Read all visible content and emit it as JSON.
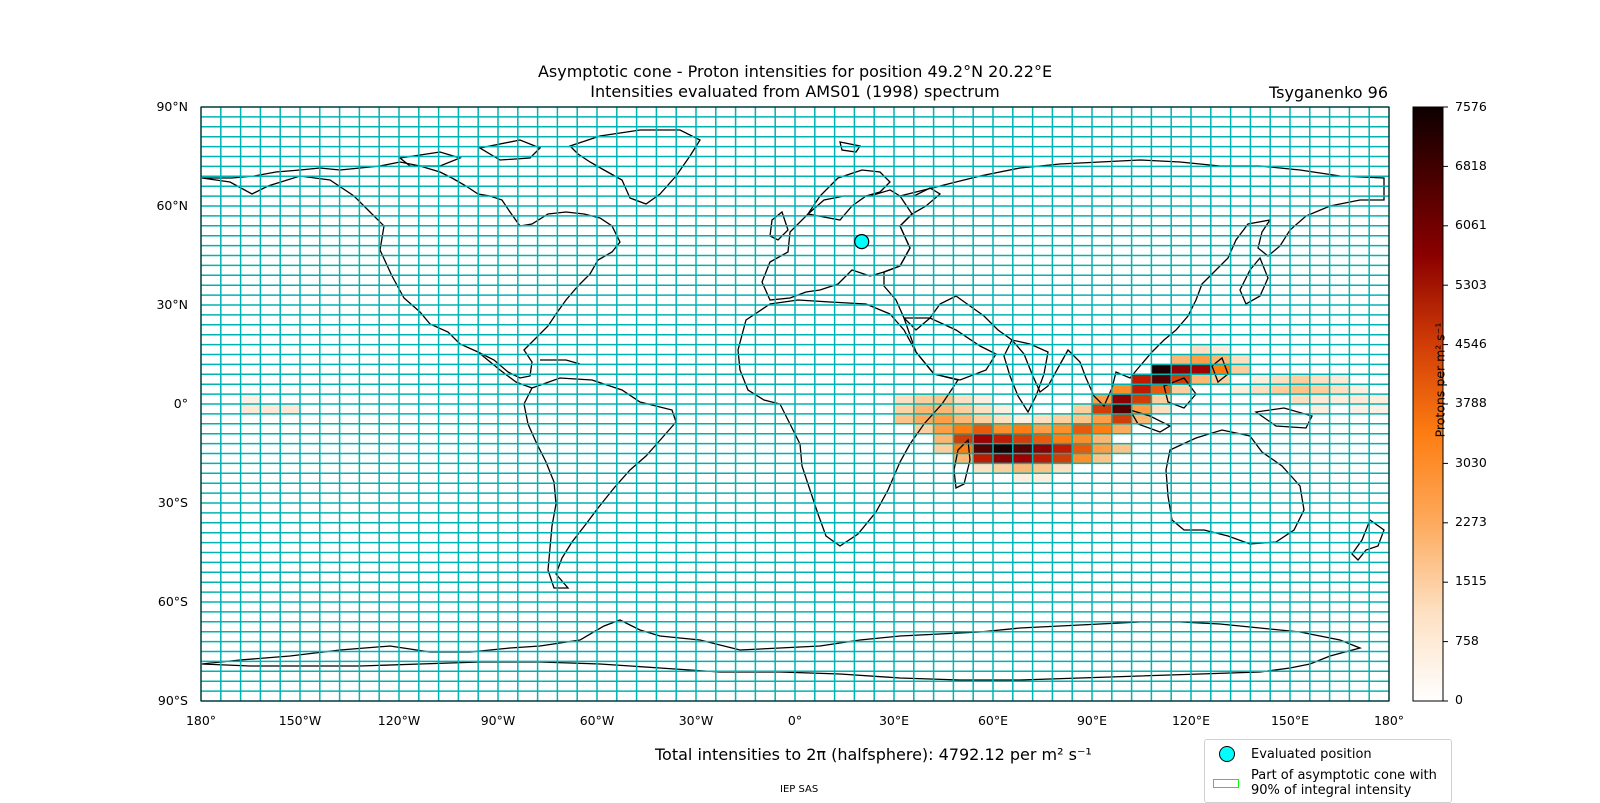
{
  "title": {
    "line1": "Asymptotic cone - Proton intensities for position 49.2°N 20.22°E",
    "line2": "Intensities evaluated from AMS01 (1998) spectrum"
  },
  "model_label": "Tsyganenko 96",
  "map": {
    "projection": "equirectangular",
    "lat_ticks": [
      "90°N",
      "60°N",
      "30°N",
      "0°",
      "30°S",
      "60°S",
      "90°S"
    ],
    "lon_ticks": [
      "180°",
      "150°W",
      "120°W",
      "90°W",
      "60°W",
      "30°W",
      "0°",
      "30°E",
      "60°E",
      "90°E",
      "120°E",
      "150°E",
      "180°"
    ],
    "grid_color": "#00b3b3",
    "evaluated_position": {
      "lat": 49.2,
      "lon": 20.22,
      "color": "#00ffff"
    },
    "intensity_cells_note": "",
    "intensity_cells": [
      [
        -168,
        0,
        "#fde9d6"
      ],
      [
        -162,
        0,
        "#fde9d6"
      ],
      [
        -156,
        0,
        "#fde9d6"
      ],
      [
        -168,
        6,
        "#fdf0e4"
      ],
      [
        30,
        6,
        "#fde0c2"
      ],
      [
        36,
        6,
        "#fdcf9f"
      ],
      [
        42,
        6,
        "#fdc48a"
      ],
      [
        48,
        6,
        "#fde0c2"
      ],
      [
        54,
        6,
        "#fdeede"
      ],
      [
        30,
        0,
        "#fdd4a8"
      ],
      [
        36,
        0,
        "#fdb774"
      ],
      [
        42,
        0,
        "#fdb774"
      ],
      [
        48,
        0,
        "#fdcf9f"
      ],
      [
        54,
        0,
        "#fde0c2"
      ],
      [
        60,
        0,
        "#fdeede"
      ],
      [
        30,
        -6,
        "#fdc48a"
      ],
      [
        36,
        -6,
        "#fdaa5d"
      ],
      [
        42,
        -6,
        "#fd9e47"
      ],
      [
        48,
        -6,
        "#fdb774"
      ],
      [
        54,
        -6,
        "#fdcf9f"
      ],
      [
        60,
        -6,
        "#fde0c2"
      ],
      [
        66,
        -6,
        "#fdeede"
      ],
      [
        72,
        -6,
        "#fde0c2"
      ],
      [
        78,
        -6,
        "#fdcf9f"
      ],
      [
        84,
        -6,
        "#fdc48a"
      ],
      [
        90,
        -6,
        "#fde0c2"
      ],
      [
        36,
        -12,
        "#fdcf9f"
      ],
      [
        42,
        -12,
        "#fd9e47"
      ],
      [
        48,
        -12,
        "#fd7d12"
      ],
      [
        54,
        -12,
        "#e85a0a"
      ],
      [
        60,
        -12,
        "#fd8f2b"
      ],
      [
        66,
        -12,
        "#fd7d12"
      ],
      [
        72,
        -12,
        "#fd9e47"
      ],
      [
        78,
        -12,
        "#fd8f2b"
      ],
      [
        84,
        -12,
        "#e85a0a"
      ],
      [
        90,
        -12,
        "#fd7d12"
      ],
      [
        96,
        -12,
        "#fdaa5d"
      ],
      [
        42,
        -18,
        "#fdb774"
      ],
      [
        48,
        -18,
        "#d13d06"
      ],
      [
        54,
        -18,
        "#a00000"
      ],
      [
        60,
        -18,
        "#bf1a00"
      ],
      [
        66,
        -18,
        "#d13d06"
      ],
      [
        72,
        -18,
        "#e85a0a"
      ],
      [
        78,
        -18,
        "#fd7d12"
      ],
      [
        84,
        -18,
        "#fd8f2b"
      ],
      [
        90,
        -18,
        "#fdb774"
      ],
      [
        42,
        -24,
        "#fdcf9f"
      ],
      [
        48,
        -24,
        "#fd7d12"
      ],
      [
        54,
        -24,
        "#520000"
      ],
      [
        60,
        -24,
        "#1a0000"
      ],
      [
        66,
        -24,
        "#520000"
      ],
      [
        72,
        -24,
        "#8b0000"
      ],
      [
        78,
        -24,
        "#bf1a00"
      ],
      [
        84,
        -24,
        "#e85a0a"
      ],
      [
        90,
        -24,
        "#fd9e47"
      ],
      [
        96,
        -24,
        "#fdc48a"
      ],
      [
        48,
        -30,
        "#fdb774"
      ],
      [
        54,
        -30,
        "#bf1a00"
      ],
      [
        60,
        -30,
        "#8b0000"
      ],
      [
        66,
        -30,
        "#a00000"
      ],
      [
        72,
        -30,
        "#bf1a00"
      ],
      [
        78,
        -30,
        "#d13d06"
      ],
      [
        84,
        -30,
        "#fd8f2b"
      ],
      [
        90,
        -30,
        "#fdc48a"
      ],
      [
        54,
        -36,
        "#fde0c2"
      ],
      [
        60,
        -36,
        "#fdcf9f"
      ],
      [
        66,
        -36,
        "#fdb774"
      ],
      [
        72,
        -36,
        "#fdc48a"
      ],
      [
        78,
        -36,
        "#fde0c2"
      ],
      [
        66,
        -42,
        "#fdeede"
      ],
      [
        72,
        -42,
        "#fdeede"
      ],
      [
        84,
        -6,
        "#fdc48a"
      ],
      [
        90,
        -6,
        "#fd9e47"
      ],
      [
        96,
        -6,
        "#d13d06"
      ],
      [
        102,
        -6,
        "#fdb774"
      ],
      [
        84,
        0,
        "#fdcf9f"
      ],
      [
        90,
        0,
        "#d13d06"
      ],
      [
        96,
        0,
        "#520000"
      ],
      [
        102,
        0,
        "#fd9e47"
      ],
      [
        108,
        0,
        "#fde0c2"
      ],
      [
        90,
        6,
        "#fd9e47"
      ],
      [
        96,
        6,
        "#8b0000"
      ],
      [
        102,
        6,
        "#d13d06"
      ],
      [
        108,
        6,
        "#fdcf9f"
      ],
      [
        96,
        12,
        "#fd8f2b"
      ],
      [
        102,
        12,
        "#bf1a00"
      ],
      [
        108,
        12,
        "#e85a0a"
      ],
      [
        114,
        12,
        "#fdcf9f"
      ],
      [
        102,
        18,
        "#bf1a00"
      ],
      [
        108,
        18,
        "#520000"
      ],
      [
        114,
        18,
        "#d13d06"
      ],
      [
        120,
        18,
        "#fdb774"
      ],
      [
        126,
        18,
        "#fdcf9f"
      ],
      [
        108,
        24,
        "#1a0000"
      ],
      [
        114,
        24,
        "#8b0000"
      ],
      [
        120,
        24,
        "#a00000"
      ],
      [
        126,
        24,
        "#fd7d12"
      ],
      [
        132,
        24,
        "#fdcf9f"
      ],
      [
        114,
        30,
        "#fdb774"
      ],
      [
        120,
        30,
        "#fd9e47"
      ],
      [
        126,
        30,
        "#fdb774"
      ],
      [
        132,
        30,
        "#fde0c2"
      ],
      [
        120,
        36,
        "#fde0c2"
      ],
      [
        126,
        36,
        "#fdeede"
      ],
      [
        138,
        18,
        "#fdeede"
      ],
      [
        144,
        18,
        "#fde0c2"
      ],
      [
        150,
        18,
        "#fdcf9f"
      ],
      [
        156,
        18,
        "#fde0c2"
      ],
      [
        162,
        18,
        "#fde9d6"
      ],
      [
        132,
        12,
        "#fdeede"
      ],
      [
        138,
        12,
        "#fde0c2"
      ],
      [
        144,
        12,
        "#fdcf9f"
      ],
      [
        150,
        12,
        "#fdc48a"
      ],
      [
        156,
        12,
        "#fdcf9f"
      ],
      [
        162,
        12,
        "#fde0c2"
      ],
      [
        168,
        12,
        "#fdeede"
      ],
      [
        150,
        6,
        "#fde0c2"
      ],
      [
        156,
        6,
        "#fde9d6"
      ],
      [
        162,
        6,
        "#fdeede"
      ],
      [
        168,
        6,
        "#fde9d6"
      ],
      [
        174,
        6,
        "#fdeede"
      ],
      [
        156,
        0,
        "#fdeede"
      ],
      [
        168,
        0,
        "#fdf0e4"
      ],
      [
        174,
        0,
        "#fdf0e4"
      ]
    ]
  },
  "colorbar": {
    "label": "Protons per m² s⁻¹",
    "ticks": [
      "0",
      "758",
      "1515",
      "2273",
      "3030",
      "3788",
      "4546",
      "5303",
      "6061",
      "6818",
      "7576"
    ],
    "min": 0,
    "max": 7576
  },
  "total": "Total intensities to 2π (halfsphere): 4792.12 per m² s⁻¹",
  "legend": {
    "item1": "Evaluated position",
    "item2_line1": "Part of asymptotic cone with",
    "item2_line2": "90% of integral intensity"
  },
  "footer": "IEP SAS"
}
